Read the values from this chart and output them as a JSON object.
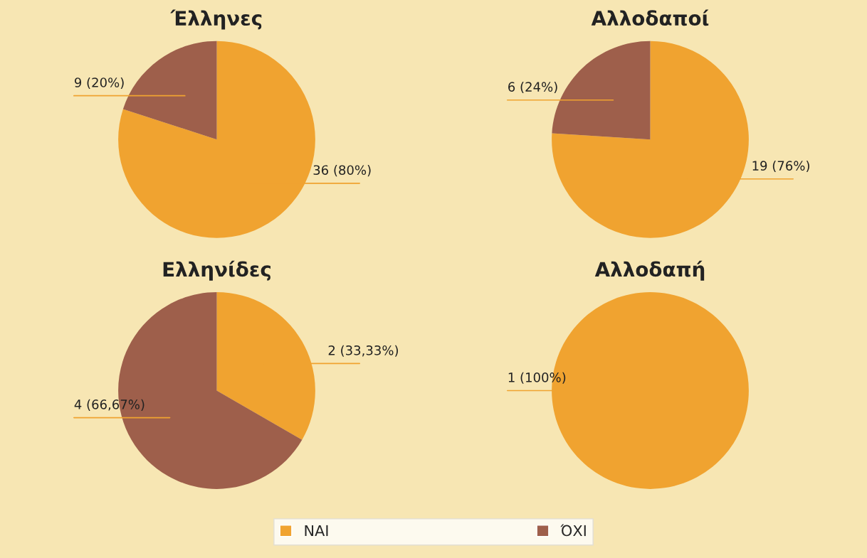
{
  "chart_data": [
    {
      "type": "pie",
      "title": "Έλληνες",
      "categories": [
        "ΝΑΙ",
        "ΌΧΙ"
      ],
      "values": [
        36,
        9
      ],
      "colors": [
        "#f0a330",
        "#9e5f4b"
      ],
      "value_labels": [
        "36 (80%)",
        "9 (20%)"
      ],
      "legend": "bottom"
    },
    {
      "type": "pie",
      "title": "Αλλοδαποί",
      "categories": [
        null,
        null
      ],
      "values": [
        19,
        6
      ],
      "colors": [
        "#f0a330",
        "#9e5f4b"
      ],
      "value_labels": [
        "19 (76%)",
        "6 (24%)"
      ]
    },
    {
      "type": "pie",
      "title": "Ελληνίδες",
      "categories": [
        null,
        null
      ],
      "values": [
        2,
        4
      ],
      "colors": [
        "#f0a330",
        "#9e5f4b"
      ],
      "value_labels": [
        "2 (33,33%)",
        "4 (66,67%)"
      ]
    },
    {
      "type": "pie",
      "title": "Αλλοδαπή",
      "categories": [
        null,
        null
      ],
      "values": [
        1,
        0
      ],
      "colors": [
        "#f0a330",
        "#9e5f4b"
      ],
      "value_labels": [
        "1 (100%)",
        null
      ]
    }
  ]
}
